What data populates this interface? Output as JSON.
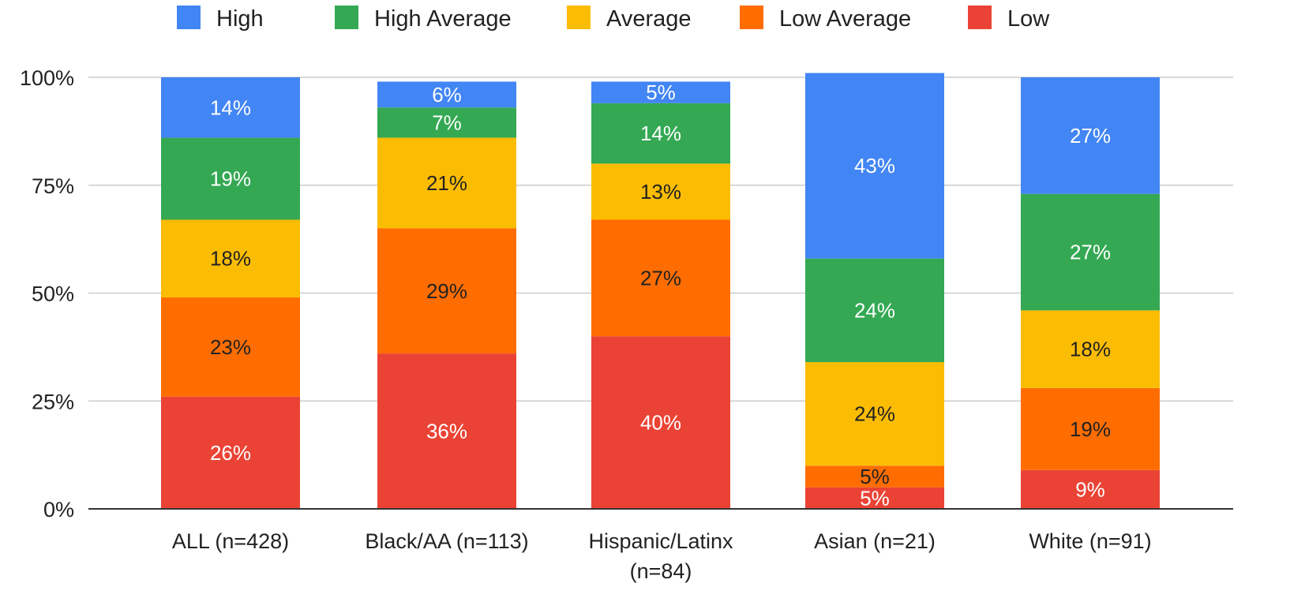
{
  "chart_data": {
    "type": "bar",
    "stacked": true,
    "normalized": true,
    "title": "",
    "xlabel": "",
    "ylabel": "",
    "ylim": [
      0,
      100
    ],
    "y_ticks": [
      "0%",
      "25%",
      "50%",
      "75%",
      "100%"
    ],
    "grid": true,
    "legend_position": "top",
    "categories": [
      [
        "ALL (n=428)"
      ],
      [
        "Black/AA (n=113)"
      ],
      [
        "Hispanic/Latinx",
        "(n=84)"
      ],
      [
        "Asian (n=21)"
      ],
      [
        "White (n=91)"
      ]
    ],
    "series": [
      {
        "name": "Low",
        "color": "#ea4335",
        "label_color": "#ffffff",
        "values": [
          26,
          36,
          40,
          5,
          9
        ],
        "labels": [
          "26%",
          "36%",
          "40%",
          "5%",
          "9%"
        ]
      },
      {
        "name": "Low Average",
        "color": "#ff6d01",
        "label_color": "#222222",
        "values": [
          23,
          29,
          27,
          5,
          19
        ],
        "labels": [
          "23%",
          "29%",
          "27%",
          "5%",
          "19%"
        ]
      },
      {
        "name": "Average",
        "color": "#fbbc04",
        "label_color": "#222222",
        "values": [
          18,
          21,
          13,
          24,
          18
        ],
        "labels": [
          "18%",
          "21%",
          "13%",
          "24%",
          "18%"
        ]
      },
      {
        "name": "High Average",
        "color": "#34a853",
        "label_color": "#ffffff",
        "values": [
          19,
          7,
          14,
          24,
          27
        ],
        "labels": [
          "19%",
          "7%",
          "14%",
          "24%",
          "27%"
        ]
      },
      {
        "name": "High",
        "color": "#4285f4",
        "label_color": "#ffffff",
        "values": [
          14,
          6,
          5,
          43,
          27
        ],
        "labels": [
          "14%",
          "6%",
          "5%",
          "43%",
          "27%"
        ]
      }
    ],
    "legend_order": [
      "High",
      "High Average",
      "Average",
      "Low Average",
      "Low"
    ]
  }
}
